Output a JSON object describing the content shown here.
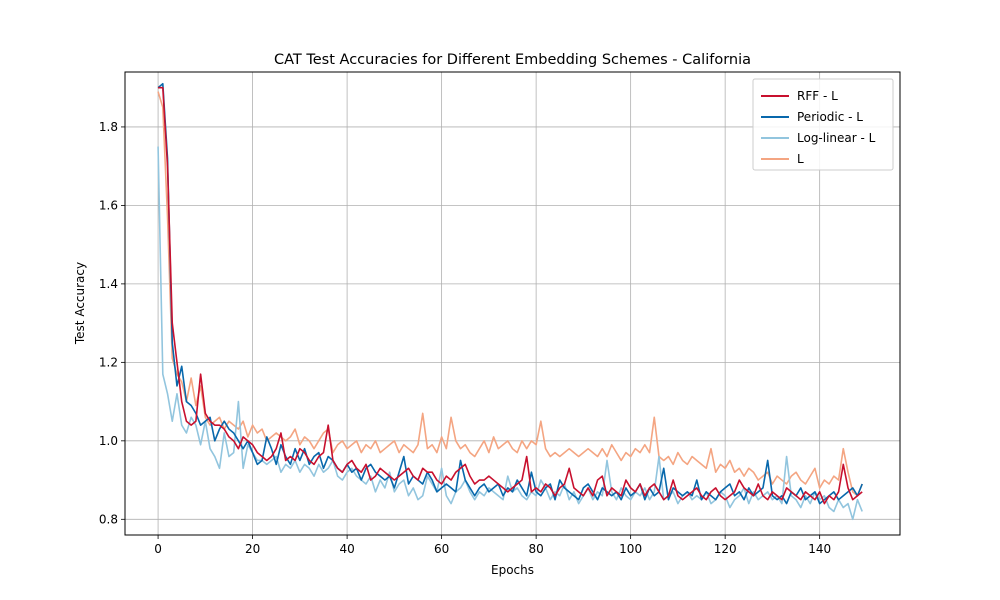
{
  "chart_data": {
    "type": "line",
    "title": "CAT Test Accuracies for Different Embedding Schemes - California",
    "xlabel": "Epochs",
    "ylabel": "Test Accuracy",
    "xlim": [
      -7,
      157
    ],
    "ylim": [
      0.76,
      1.94
    ],
    "xticks": [
      0,
      20,
      40,
      60,
      80,
      100,
      120,
      140
    ],
    "yticks": [
      0.8,
      1.0,
      1.2,
      1.4,
      1.6,
      1.8
    ],
    "grid": true,
    "legend_position": "top-right",
    "series": [
      {
        "name": "RFF - L",
        "color": "#c8102e",
        "x_start": 0,
        "values": [
          1.9,
          1.9,
          1.7,
          1.3,
          1.2,
          1.1,
          1.05,
          1.04,
          1.05,
          1.17,
          1.07,
          1.05,
          1.04,
          1.04,
          1.03,
          1.01,
          1.0,
          0.98,
          1.01,
          1.0,
          0.99,
          0.97,
          0.96,
          0.95,
          0.96,
          0.98,
          1.02,
          0.95,
          0.96,
          0.95,
          0.98,
          0.97,
          0.95,
          0.94,
          0.96,
          0.97,
          1.04,
          0.95,
          0.93,
          0.92,
          0.94,
          0.95,
          0.93,
          0.92,
          0.94,
          0.9,
          0.91,
          0.93,
          0.92,
          0.91,
          0.9,
          0.91,
          0.92,
          0.93,
          0.91,
          0.9,
          0.93,
          0.92,
          0.92,
          0.9,
          0.89,
          0.91,
          0.9,
          0.92,
          0.93,
          0.94,
          0.91,
          0.89,
          0.9,
          0.9,
          0.91,
          0.9,
          0.89,
          0.88,
          0.87,
          0.88,
          0.89,
          0.9,
          0.96,
          0.87,
          0.88,
          0.87,
          0.89,
          0.88,
          0.86,
          0.88,
          0.89,
          0.93,
          0.88,
          0.87,
          0.86,
          0.88,
          0.86,
          0.9,
          0.91,
          0.86,
          0.88,
          0.87,
          0.86,
          0.9,
          0.88,
          0.87,
          0.89,
          0.86,
          0.88,
          0.89,
          0.87,
          0.85,
          0.86,
          0.9,
          0.86,
          0.85,
          0.86,
          0.87,
          0.88,
          0.86,
          0.85,
          0.87,
          0.88,
          0.86,
          0.85,
          0.86,
          0.87,
          0.9,
          0.88,
          0.87,
          0.86,
          0.89,
          0.86,
          0.85,
          0.87,
          0.86,
          0.85,
          0.88,
          0.87,
          0.86,
          0.85,
          0.87,
          0.86,
          0.85,
          0.87,
          0.84,
          0.86,
          0.85,
          0.87,
          0.94,
          0.88,
          0.85,
          0.86,
          0.87
        ]
      },
      {
        "name": "Periodic - L",
        "color": "#0868ac",
        "x_start": 0,
        "values": [
          1.9,
          1.91,
          1.72,
          1.25,
          1.14,
          1.19,
          1.1,
          1.09,
          1.07,
          1.04,
          1.05,
          1.06,
          1.0,
          1.03,
          1.05,
          1.03,
          1.02,
          1.0,
          0.98,
          1.0,
          0.97,
          0.94,
          0.95,
          1.01,
          0.98,
          0.94,
          0.99,
          0.96,
          0.94,
          0.98,
          0.95,
          0.98,
          0.94,
          0.96,
          0.97,
          0.93,
          0.96,
          0.95,
          0.93,
          0.92,
          0.94,
          0.92,
          0.93,
          0.9,
          0.93,
          0.94,
          0.92,
          0.91,
          0.9,
          0.91,
          0.88,
          0.92,
          0.96,
          0.89,
          0.91,
          0.9,
          0.89,
          0.92,
          0.9,
          0.87,
          0.88,
          0.89,
          0.88,
          0.87,
          0.95,
          0.9,
          0.88,
          0.86,
          0.88,
          0.89,
          0.87,
          0.88,
          0.89,
          0.86,
          0.88,
          0.87,
          0.9,
          0.88,
          0.86,
          0.92,
          0.87,
          0.86,
          0.88,
          0.89,
          0.85,
          0.9,
          0.88,
          0.87,
          0.86,
          0.85,
          0.88,
          0.89,
          0.87,
          0.85,
          0.88,
          0.87,
          0.86,
          0.87,
          0.85,
          0.88,
          0.86,
          0.87,
          0.89,
          0.85,
          0.88,
          0.86,
          0.87,
          0.93,
          0.85,
          0.88,
          0.87,
          0.86,
          0.87,
          0.86,
          0.9,
          0.85,
          0.87,
          0.86,
          0.85,
          0.87,
          0.88,
          0.89,
          0.86,
          0.87,
          0.85,
          0.88,
          0.86,
          0.87,
          0.88,
          0.95,
          0.86,
          0.85,
          0.86,
          0.84,
          0.87,
          0.86,
          0.88,
          0.85,
          0.86,
          0.87,
          0.84,
          0.85,
          0.86,
          0.87,
          0.85,
          0.86,
          0.87,
          0.88,
          0.86,
          0.89
        ]
      },
      {
        "name": "Log-linear - L",
        "color": "#92c5de",
        "x_start": 0,
        "values": [
          1.75,
          1.17,
          1.12,
          1.05,
          1.12,
          1.04,
          1.02,
          1.06,
          1.04,
          0.99,
          1.05,
          0.98,
          0.96,
          0.93,
          1.02,
          0.96,
          0.97,
          1.1,
          0.93,
          0.99,
          0.97,
          0.95,
          0.95,
          0.94,
          0.95,
          0.96,
          0.92,
          0.94,
          0.93,
          0.95,
          0.92,
          0.94,
          0.93,
          0.91,
          0.94,
          0.92,
          0.93,
          0.95,
          0.91,
          0.9,
          0.92,
          0.93,
          0.91,
          0.9,
          0.89,
          0.91,
          0.87,
          0.9,
          0.88,
          0.92,
          0.87,
          0.89,
          0.9,
          0.86,
          0.88,
          0.85,
          0.86,
          0.91,
          0.89,
          0.87,
          0.93,
          0.86,
          0.84,
          0.87,
          0.88,
          0.9,
          0.87,
          0.85,
          0.87,
          0.86,
          0.88,
          0.87,
          0.86,
          0.85,
          0.91,
          0.87,
          0.88,
          0.86,
          0.85,
          0.87,
          0.86,
          0.9,
          0.88,
          0.85,
          0.87,
          0.86,
          0.89,
          0.85,
          0.87,
          0.84,
          0.86,
          0.88,
          0.85,
          0.87,
          0.86,
          0.95,
          0.87,
          0.85,
          0.88,
          0.86,
          0.85,
          0.87,
          0.86,
          0.88,
          0.85,
          0.87,
          0.96,
          0.85,
          0.86,
          0.87,
          0.84,
          0.86,
          0.87,
          0.85,
          0.86,
          0.85,
          0.87,
          0.84,
          0.85,
          0.87,
          0.86,
          0.83,
          0.85,
          0.86,
          0.88,
          0.84,
          0.87,
          0.85,
          0.86,
          0.87,
          0.85,
          0.86,
          0.84,
          0.96,
          0.86,
          0.85,
          0.83,
          0.86,
          0.84,
          0.87,
          0.85,
          0.86,
          0.83,
          0.82,
          0.85,
          0.83,
          0.84,
          0.8,
          0.85,
          0.82
        ]
      },
      {
        "name": "L",
        "color": "#f4a582",
        "x_start": 0,
        "values": [
          1.89,
          1.85,
          1.57,
          1.21,
          1.17,
          1.15,
          1.1,
          1.16,
          1.09,
          1.14,
          1.06,
          1.04,
          1.05,
          1.06,
          1.03,
          1.05,
          1.04,
          1.03,
          1.05,
          1.01,
          1.04,
          1.02,
          1.03,
          1.0,
          1.01,
          1.02,
          1.01,
          1.0,
          1.01,
          1.03,
          0.99,
          1.01,
          1.0,
          0.98,
          1.0,
          1.02,
          1.03,
          0.97,
          0.99,
          1.0,
          0.98,
          0.99,
          1.0,
          0.97,
          0.99,
          0.98,
          1.0,
          0.97,
          0.98,
          0.99,
          1.0,
          0.97,
          0.99,
          0.98,
          0.97,
          0.99,
          1.07,
          0.98,
          0.99,
          0.97,
          1.01,
          0.98,
          1.06,
          1.0,
          0.98,
          0.99,
          0.97,
          0.96,
          0.98,
          1.0,
          0.97,
          1.01,
          0.98,
          0.99,
          1.0,
          0.98,
          0.97,
          1.0,
          0.98,
          1.0,
          0.99,
          1.05,
          0.98,
          0.96,
          0.97,
          0.96,
          0.97,
          0.98,
          0.97,
          0.96,
          0.97,
          0.98,
          0.97,
          0.96,
          0.98,
          0.96,
          0.99,
          0.97,
          0.95,
          0.97,
          0.96,
          0.98,
          0.97,
          0.99,
          0.97,
          1.06,
          0.96,
          0.95,
          0.96,
          0.94,
          0.97,
          0.95,
          0.94,
          0.96,
          0.95,
          0.94,
          0.93,
          0.98,
          0.92,
          0.94,
          0.93,
          0.95,
          0.92,
          0.93,
          0.91,
          0.93,
          0.92,
          0.9,
          0.91,
          0.92,
          0.89,
          0.91,
          0.9,
          0.89,
          0.91,
          0.92,
          0.9,
          0.89,
          0.91,
          0.93,
          0.88,
          0.9,
          0.89,
          0.91,
          0.9,
          0.98,
          0.92,
          0.87,
          0.86,
          0.89
        ]
      }
    ]
  }
}
